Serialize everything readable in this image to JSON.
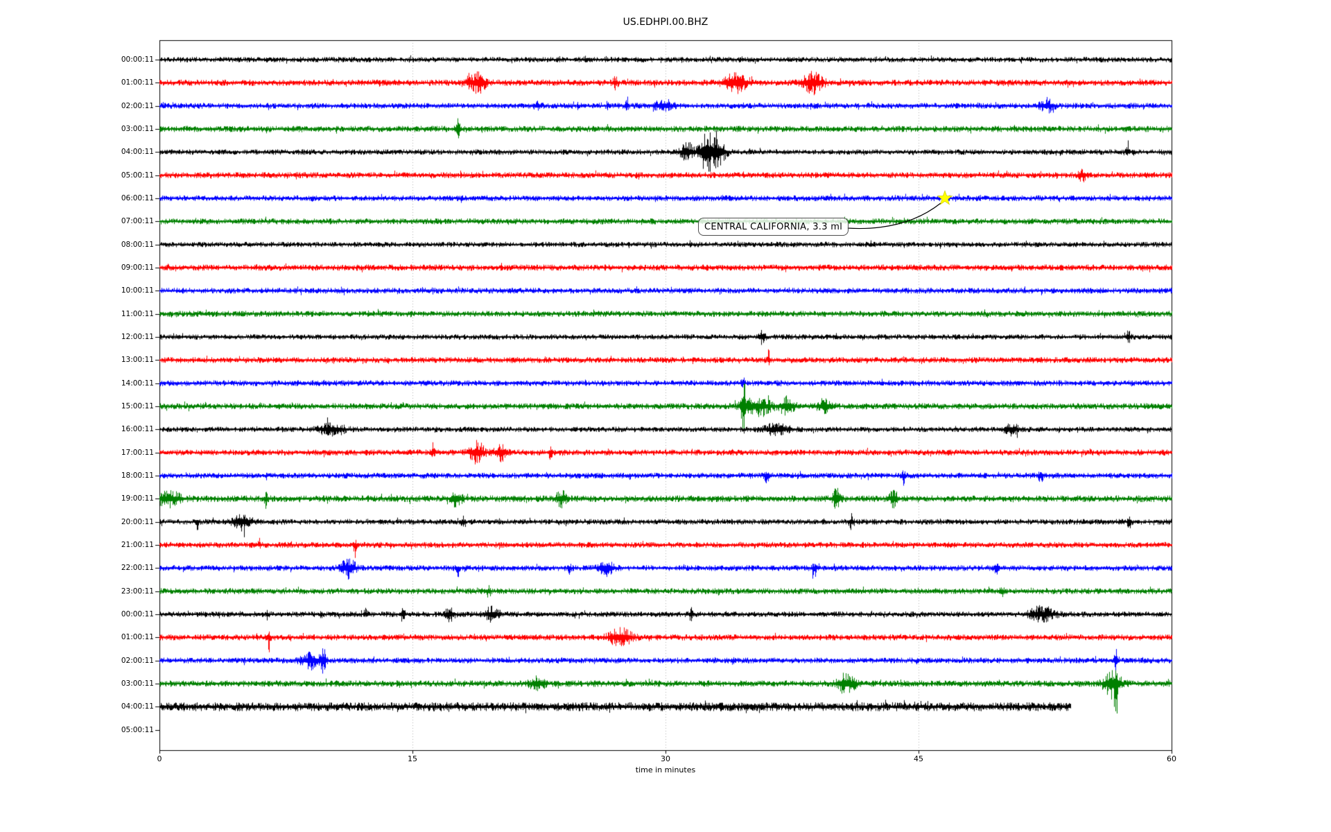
{
  "title": "US.EDHPI.00.BHZ",
  "colors": {
    "trace_cycle": [
      "#000000",
      "#ff0000",
      "#0000ff",
      "#008000"
    ],
    "grid": "#b0b0b0",
    "star": "#ffff00",
    "axis": "#000000"
  },
  "chart_data": {
    "type": "line",
    "subtype": "seismogram-dayplot",
    "title": "US.EDHPI.00.BHZ",
    "xlabel": "time in minutes",
    "xlim": [
      0,
      60
    ],
    "x_ticks": [
      0,
      15,
      30,
      45,
      60
    ],
    "x_tick_labels": [
      "0",
      "15",
      "30",
      "45",
      "60"
    ],
    "grid_minutes": [
      15,
      30,
      45
    ],
    "grid_style": "dotted-vertical",
    "legend": "none",
    "annotation": {
      "text": "CENTRAL CALIFORNIA, 3.3 ml",
      "row_index": 6,
      "row_label": "06:00:11",
      "star_minute": 46.6,
      "star_color": "#ffff00"
    },
    "rows": [
      {
        "label": "00:00:11",
        "color": "#000000",
        "noise": 2.6,
        "end": 60,
        "events": [
          {
            "t": 25.3,
            "a": 2.0,
            "w": 0.08,
            "d": -1
          }
        ]
      },
      {
        "label": "01:00:11",
        "color": "#ff0000",
        "noise": 3.0,
        "end": 60,
        "events": [
          {
            "t": 18.3,
            "a": 4.5,
            "w": 0.06,
            "d": 1
          },
          {
            "t": 18.9,
            "a": 3.2,
            "w": 0.3,
            "d": 0
          },
          {
            "t": 27.0,
            "a": 1.5,
            "w": 0.1,
            "d": 0
          },
          {
            "t": 34.2,
            "a": 2.8,
            "w": 0.5,
            "d": 0
          },
          {
            "t": 38.7,
            "a": 3.2,
            "w": 0.4,
            "d": 0
          }
        ]
      },
      {
        "label": "02:00:11",
        "color": "#0000ff",
        "noise": 2.8,
        "end": 60,
        "events": [
          {
            "t": 22.4,
            "a": 1.5,
            "w": 0.15,
            "d": 0
          },
          {
            "t": 26.6,
            "a": 2.2,
            "w": 0.07,
            "d": 1
          },
          {
            "t": 27.7,
            "a": 3.0,
            "w": 0.07,
            "d": 1
          },
          {
            "t": 29.9,
            "a": 1.8,
            "w": 0.35,
            "d": 0
          },
          {
            "t": 52.6,
            "a": 1.8,
            "w": 0.3,
            "d": 0
          }
        ]
      },
      {
        "label": "03:00:11",
        "color": "#008000",
        "noise": 3.0,
        "end": 60,
        "events": [
          {
            "t": 17.7,
            "a": 4.5,
            "w": 0.07,
            "d": 0
          }
        ]
      },
      {
        "label": "04:00:11",
        "color": "#000000",
        "noise": 2.6,
        "end": 60,
        "events": [
          {
            "t": 31.3,
            "a": 3.0,
            "w": 0.3,
            "d": 0
          },
          {
            "t": 32.4,
            "a": 8.0,
            "w": 0.25,
            "d": 0
          },
          {
            "t": 33.1,
            "a": 5.0,
            "w": 0.3,
            "d": 0
          },
          {
            "t": 57.4,
            "a": 2.0,
            "w": 0.08,
            "d": 1
          }
        ]
      },
      {
        "label": "05:00:11",
        "color": "#ff0000",
        "noise": 2.9,
        "end": 60,
        "events": [
          {
            "t": 54.7,
            "a": 1.8,
            "w": 0.15,
            "d": 0
          }
        ]
      },
      {
        "label": "06:00:11",
        "color": "#0000ff",
        "noise": 2.8,
        "end": 60,
        "events": []
      },
      {
        "label": "07:00:11",
        "color": "#008000",
        "noise": 2.9,
        "end": 60,
        "events": []
      },
      {
        "label": "08:00:11",
        "color": "#000000",
        "noise": 2.6,
        "end": 60,
        "events": []
      },
      {
        "label": "09:00:11",
        "color": "#ff0000",
        "noise": 3.0,
        "end": 60,
        "events": []
      },
      {
        "label": "10:00:11",
        "color": "#0000ff",
        "noise": 2.8,
        "end": 60,
        "events": []
      },
      {
        "label": "11:00:11",
        "color": "#008000",
        "noise": 2.9,
        "end": 60,
        "events": []
      },
      {
        "label": "12:00:11",
        "color": "#000000",
        "noise": 2.6,
        "end": 60,
        "events": [
          {
            "t": 35.7,
            "a": 2.0,
            "w": 0.15,
            "d": 0
          },
          {
            "t": 57.4,
            "a": 2.2,
            "w": 0.1,
            "d": 0
          }
        ]
      },
      {
        "label": "13:00:11",
        "color": "#ff0000",
        "noise": 2.9,
        "end": 60,
        "events": [
          {
            "t": 36.1,
            "a": 3.0,
            "w": 0.05,
            "d": 1
          }
        ]
      },
      {
        "label": "14:00:11",
        "color": "#0000ff",
        "noise": 2.8,
        "end": 60,
        "events": [
          {
            "t": 34.6,
            "a": 3.5,
            "w": 0.06,
            "d": 1
          }
        ]
      },
      {
        "label": "15:00:11",
        "color": "#008000",
        "noise": 3.0,
        "end": 60,
        "events": [
          {
            "t": 34.6,
            "a": 8.0,
            "w": 0.1,
            "d": 0
          },
          {
            "t": 35.4,
            "a": 2.5,
            "w": 0.6,
            "d": 0
          },
          {
            "t": 37.2,
            "a": 2.5,
            "w": 0.3,
            "d": 0
          },
          {
            "t": 39.4,
            "a": 2.0,
            "w": 0.3,
            "d": 0
          }
        ]
      },
      {
        "label": "16:00:11",
        "color": "#000000",
        "noise": 2.6,
        "end": 60,
        "events": [
          {
            "t": 10.2,
            "a": 2.2,
            "w": 0.5,
            "d": 0
          },
          {
            "t": 36.6,
            "a": 2.0,
            "w": 0.5,
            "d": 0
          },
          {
            "t": 50.5,
            "a": 1.8,
            "w": 0.3,
            "d": 0
          }
        ]
      },
      {
        "label": "17:00:11",
        "color": "#ff0000",
        "noise": 2.9,
        "end": 60,
        "events": [
          {
            "t": 16.2,
            "a": 3.0,
            "w": 0.06,
            "d": 1
          },
          {
            "t": 18.8,
            "a": 3.2,
            "w": 0.3,
            "d": 0
          },
          {
            "t": 20.2,
            "a": 2.5,
            "w": 0.25,
            "d": 0
          },
          {
            "t": 23.2,
            "a": 4.5,
            "w": 0.06,
            "d": -1
          }
        ]
      },
      {
        "label": "18:00:11",
        "color": "#0000ff",
        "noise": 2.8,
        "end": 60,
        "events": [
          {
            "t": 36.0,
            "a": 1.8,
            "w": 0.1,
            "d": 0
          },
          {
            "t": 44.1,
            "a": 3.0,
            "w": 0.08,
            "d": -1
          },
          {
            "t": 52.2,
            "a": 2.5,
            "w": 0.1,
            "d": -1
          }
        ]
      },
      {
        "label": "19:00:11",
        "color": "#008000",
        "noise": 3.2,
        "end": 60,
        "events": [
          {
            "t": 0.5,
            "a": 2.0,
            "w": 0.5,
            "d": 0
          },
          {
            "t": 6.3,
            "a": 3.5,
            "w": 0.06,
            "d": -1
          },
          {
            "t": 17.6,
            "a": 2.5,
            "w": 0.2,
            "d": 0
          },
          {
            "t": 23.8,
            "a": 2.0,
            "w": 0.2,
            "d": 0
          },
          {
            "t": 40.1,
            "a": 2.8,
            "w": 0.15,
            "d": 0
          },
          {
            "t": 43.5,
            "a": 2.5,
            "w": 0.15,
            "d": 0
          }
        ]
      },
      {
        "label": "20:00:11",
        "color": "#000000",
        "noise": 2.7,
        "end": 60,
        "events": [
          {
            "t": 2.2,
            "a": 3.5,
            "w": 0.06,
            "d": -1
          },
          {
            "t": 4.9,
            "a": 2.8,
            "w": 0.35,
            "d": 0
          },
          {
            "t": 18.0,
            "a": 2.2,
            "w": 0.1,
            "d": -1
          },
          {
            "t": 41.0,
            "a": 2.2,
            "w": 0.1,
            "d": 0
          },
          {
            "t": 57.5,
            "a": 2.5,
            "w": 0.08,
            "d": 0
          }
        ]
      },
      {
        "label": "21:00:11",
        "color": "#ff0000",
        "noise": 2.9,
        "end": 60,
        "events": [
          {
            "t": 5.9,
            "a": 2.2,
            "w": 0.06,
            "d": 1
          },
          {
            "t": 11.6,
            "a": 4.5,
            "w": 0.06,
            "d": -1
          }
        ]
      },
      {
        "label": "22:00:11",
        "color": "#0000ff",
        "noise": 2.8,
        "end": 60,
        "events": [
          {
            "t": 11.2,
            "a": 3.0,
            "w": 0.3,
            "d": 0
          },
          {
            "t": 17.7,
            "a": 3.0,
            "w": 0.07,
            "d": -1
          },
          {
            "t": 24.3,
            "a": 2.8,
            "w": 0.07,
            "d": -1
          },
          {
            "t": 26.5,
            "a": 2.2,
            "w": 0.3,
            "d": 0
          },
          {
            "t": 38.8,
            "a": 3.0,
            "w": 0.1,
            "d": -1
          },
          {
            "t": 49.6,
            "a": 3.2,
            "w": 0.08,
            "d": -1
          }
        ]
      },
      {
        "label": "23:00:11",
        "color": "#008000",
        "noise": 2.9,
        "end": 60,
        "events": [
          {
            "t": 19.5,
            "a": 1.5,
            "w": 0.1,
            "d": 0
          },
          {
            "t": 49.9,
            "a": 2.8,
            "w": 0.1,
            "d": -1
          }
        ]
      },
      {
        "label": "00:00:11",
        "color": "#000000",
        "noise": 2.7,
        "end": 60,
        "events": [
          {
            "t": 6.4,
            "a": 2.2,
            "w": 0.07,
            "d": -1
          },
          {
            "t": 9.6,
            "a": 1.8,
            "w": 0.07,
            "d": -1
          },
          {
            "t": 12.2,
            "a": 2.2,
            "w": 0.07,
            "d": 1
          },
          {
            "t": 14.4,
            "a": 2.0,
            "w": 0.1,
            "d": 0
          },
          {
            "t": 17.2,
            "a": 2.0,
            "w": 0.2,
            "d": 0
          },
          {
            "t": 19.7,
            "a": 2.2,
            "w": 0.3,
            "d": 0
          },
          {
            "t": 31.5,
            "a": 1.8,
            "w": 0.1,
            "d": 0
          },
          {
            "t": 52.3,
            "a": 2.5,
            "w": 0.5,
            "d": 0
          }
        ]
      },
      {
        "label": "01:00:11",
        "color": "#ff0000",
        "noise": 2.9,
        "end": 60,
        "events": [
          {
            "t": 6.5,
            "a": 4.0,
            "w": 0.07,
            "d": -1
          },
          {
            "t": 27.3,
            "a": 2.8,
            "w": 0.45,
            "d": 0
          }
        ]
      },
      {
        "label": "02:00:11",
        "color": "#0000ff",
        "noise": 2.8,
        "end": 60,
        "events": [
          {
            "t": 9.0,
            "a": 2.5,
            "w": 0.4,
            "d": 0
          },
          {
            "t": 9.7,
            "a": 4.0,
            "w": 0.1,
            "d": 0
          },
          {
            "t": 34.0,
            "a": 2.2,
            "w": 0.08,
            "d": -1
          },
          {
            "t": 56.7,
            "a": 4.5,
            "w": 0.08,
            "d": 0
          }
        ]
      },
      {
        "label": "03:00:11",
        "color": "#008000",
        "noise": 3.1,
        "end": 60,
        "events": [
          {
            "t": 22.4,
            "a": 1.8,
            "w": 0.3,
            "d": 0
          },
          {
            "t": 40.7,
            "a": 2.8,
            "w": 0.35,
            "d": 0
          },
          {
            "t": 56.5,
            "a": 4.0,
            "w": 0.35,
            "d": 0
          },
          {
            "t": 56.7,
            "a": 7.0,
            "w": 0.08,
            "d": -1
          }
        ]
      },
      {
        "label": "04:00:11",
        "color": "#000000",
        "noise": 4.3,
        "end": 54,
        "events": []
      },
      {
        "label": "05:00:11",
        "color": "#ff0000",
        "noise": 0,
        "end": 0,
        "events": []
      }
    ]
  }
}
